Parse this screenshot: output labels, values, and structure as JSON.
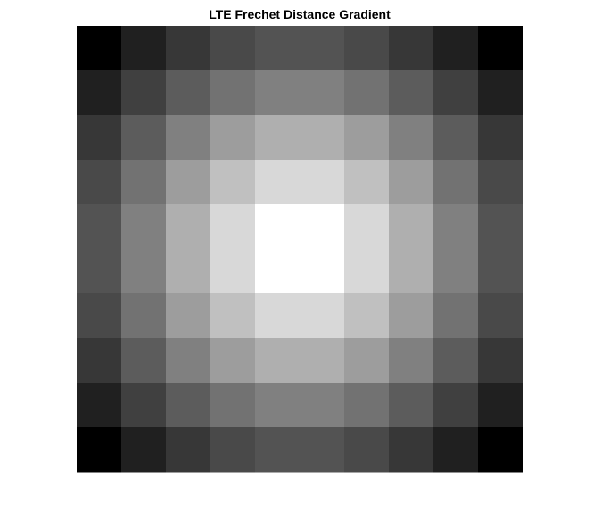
{
  "chart_data": {
    "type": "heatmap",
    "title": "LTE Frechet Distance Gradient",
    "xlabel": "",
    "ylabel": "",
    "colormap": "gray",
    "clim": [
      0,
      255
    ],
    "grid": false,
    "axes_visible": false,
    "rows": 10,
    "cols": 10,
    "values": [
      [
        0,
        32,
        55,
        73,
        83,
        83,
        73,
        55,
        32,
        0
      ],
      [
        32,
        64,
        92,
        114,
        128,
        128,
        114,
        92,
        64,
        32
      ],
      [
        55,
        92,
        128,
        157,
        175,
        175,
        157,
        128,
        92,
        55
      ],
      [
        73,
        114,
        157,
        192,
        216,
        216,
        192,
        157,
        114,
        73
      ],
      [
        83,
        128,
        175,
        216,
        255,
        255,
        216,
        175,
        128,
        83
      ],
      [
        83,
        128,
        175,
        216,
        255,
        255,
        216,
        175,
        128,
        83
      ],
      [
        73,
        114,
        157,
        192,
        216,
        216,
        192,
        157,
        114,
        73
      ],
      [
        55,
        92,
        128,
        157,
        175,
        175,
        157,
        128,
        92,
        55
      ],
      [
        32,
        64,
        92,
        114,
        128,
        128,
        114,
        92,
        64,
        32
      ],
      [
        0,
        32,
        55,
        73,
        83,
        83,
        73,
        55,
        32,
        0
      ]
    ]
  }
}
